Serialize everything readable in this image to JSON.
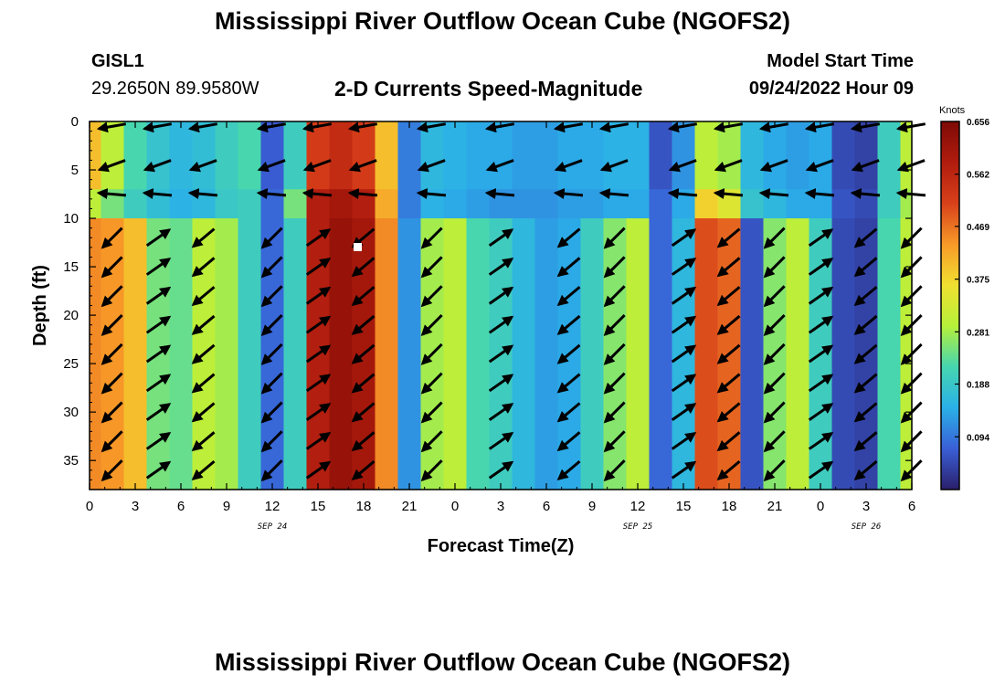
{
  "header": {
    "title": "Mississippi River Outflow Ocean Cube (NGOFS2)",
    "station_id": "GISL1",
    "station_coords": "29.2650N  89.9580W",
    "plot_title": "2-D Currents Speed-Magnitude",
    "model_start_label": "Model Start Time",
    "model_start_time": "09/24/2022 Hour 09"
  },
  "footer": {
    "title": "Mississippi River Outflow Ocean Cube (NGOFS2)"
  },
  "chart_data": {
    "type": "heatmap",
    "title": "2-D Currents Speed-Magnitude",
    "xlabel": "Forecast Time(Z)",
    "ylabel": "Depth (ft)",
    "xlim": [
      0,
      54
    ],
    "ylim": [
      38,
      0
    ],
    "x_ticks": [
      0,
      3,
      6,
      9,
      12,
      15,
      18,
      21,
      24,
      27,
      30,
      33,
      36,
      39,
      42,
      45,
      48,
      51,
      54
    ],
    "x_tick_labels": [
      "0",
      "3",
      "6",
      "9",
      "12",
      "15",
      "18",
      "21",
      "0",
      "3",
      "6",
      "9",
      "12",
      "15",
      "18",
      "21",
      "0",
      "3",
      "6"
    ],
    "y_ticks": [
      0,
      5,
      10,
      15,
      20,
      25,
      30,
      35
    ],
    "y_tick_labels": [
      "0",
      "5",
      "10",
      "15",
      "20",
      "25",
      "30",
      "35"
    ],
    "date_labels": [
      {
        "x": 12,
        "label": "SEP 24"
      },
      {
        "x": 36,
        "label": "SEP 25"
      },
      {
        "x": 51,
        "label": "SEP 26"
      }
    ],
    "colorbar": {
      "unit": "Knots",
      "min": 0,
      "max": 0.656,
      "tick_values": [
        0.094,
        0.188,
        0.281,
        0.375,
        0.469,
        0.562,
        0.656
      ],
      "tick_labels": [
        "0.094",
        "0.188",
        "0.281",
        "0.375",
        "0.469",
        "0.562",
        "0.656"
      ],
      "colormap": [
        "#2a1f6a",
        "#3a5fd6",
        "#2ab0e8",
        "#46d6b0",
        "#b6f03a",
        "#f0e030",
        "#f89a28",
        "#d8401a",
        "#b01c0e",
        "#7e0a06"
      ]
    },
    "time_hours": [
      0,
      1.5,
      3,
      4.5,
      6,
      7.5,
      9,
      10.5,
      12,
      13.5,
      15,
      16.5,
      18,
      19.5,
      21,
      22.5,
      24,
      25.5,
      27,
      28.5,
      30,
      31.5,
      33,
      34.5,
      36,
      37.5,
      39,
      40.5,
      42,
      43.5,
      45,
      46.5,
      48,
      49.5,
      51,
      52.5,
      54
    ],
    "depth_layers": [
      {
        "depth": [
          0,
          7
        ],
        "speed": [
          0.4,
          0.3,
          0.22,
          0.18,
          0.16,
          0.17,
          0.2,
          0.22,
          0.07,
          0.2,
          0.52,
          0.55,
          0.52,
          0.4,
          0.1,
          0.16,
          0.15,
          0.14,
          0.14,
          0.13,
          0.13,
          0.14,
          0.14,
          0.15,
          0.15,
          0.06,
          0.12,
          0.3,
          0.28,
          0.16,
          0.14,
          0.13,
          0.14,
          0.05,
          0.04,
          0.2,
          0.3
        ]
      },
      {
        "depth": [
          7,
          10
        ],
        "speed": [
          0.3,
          0.25,
          0.2,
          0.17,
          0.15,
          0.16,
          0.19,
          0.2,
          0.08,
          0.25,
          0.58,
          0.6,
          0.58,
          0.42,
          0.1,
          0.15,
          0.14,
          0.13,
          0.12,
          0.12,
          0.12,
          0.13,
          0.13,
          0.14,
          0.14,
          0.08,
          0.14,
          0.38,
          0.34,
          0.18,
          0.16,
          0.14,
          0.14,
          0.06,
          0.05,
          0.2,
          0.28
        ]
      },
      {
        "depth": [
          10,
          38
        ],
        "speed": [
          0.45,
          0.44,
          0.4,
          0.25,
          0.24,
          0.3,
          0.28,
          0.2,
          0.08,
          0.2,
          0.58,
          0.62,
          0.6,
          0.45,
          0.12,
          0.28,
          0.3,
          0.22,
          0.2,
          0.16,
          0.13,
          0.14,
          0.2,
          0.26,
          0.3,
          0.08,
          0.16,
          0.5,
          0.48,
          0.06,
          0.26,
          0.3,
          0.2,
          0.05,
          0.04,
          0.22,
          0.3
        ]
      }
    ],
    "vector_rows_depth_ft": [
      0.5,
      4.5,
      7.5,
      12,
      15,
      18,
      21,
      24,
      27,
      30,
      33,
      36
    ],
    "vector_columns_hour": [
      1.5,
      4.5,
      7.5,
      12,
      15,
      18,
      22.5,
      27,
      31.5,
      34.5,
      39,
      42,
      45,
      48,
      51,
      54
    ]
  }
}
